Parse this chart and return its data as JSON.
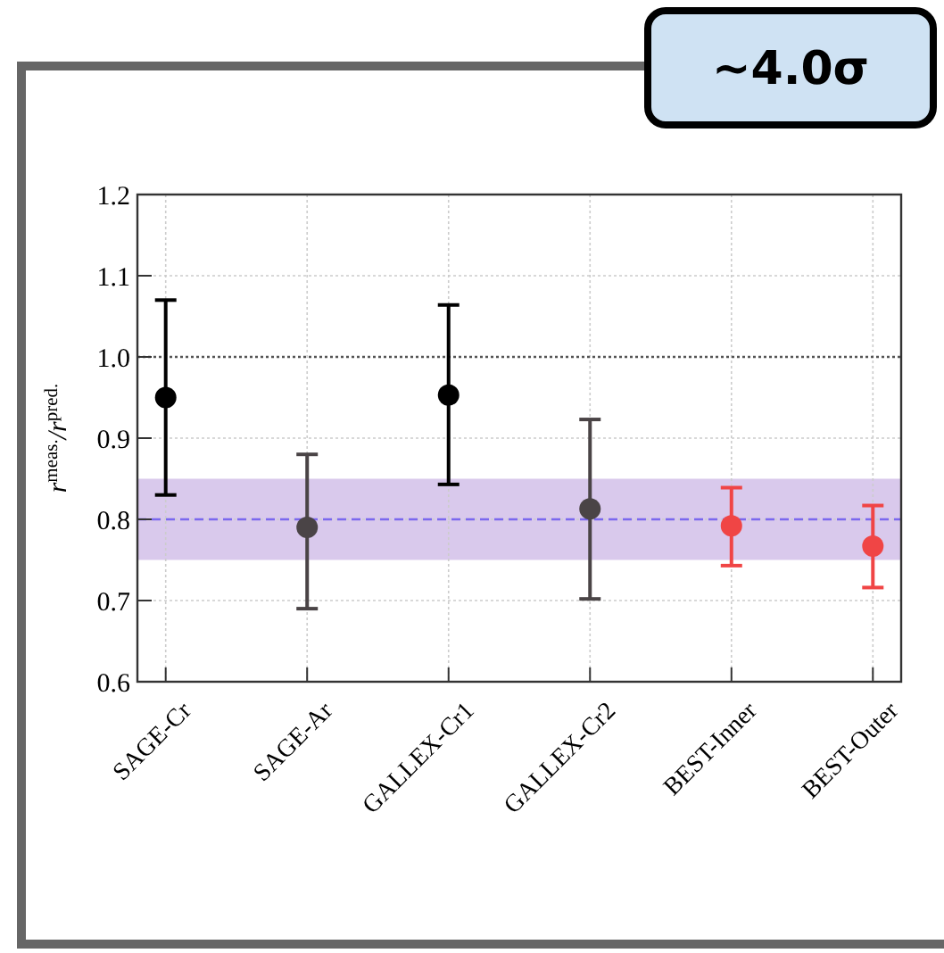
{
  "chart_data": {
    "type": "scatter",
    "ylabel": "r$^{meas.}$/r$^{pred.}$",
    "categories": [
      "SAGE-Cr",
      "SAGE-Ar",
      "GALLEX-Cr1",
      "GALLEX-Cr2",
      "BEST-Inner",
      "BEST-Outer"
    ],
    "values": [
      0.95,
      0.79,
      0.953,
      0.813,
      0.792,
      0.767
    ],
    "errors": [
      [
        0.83,
        1.07
      ],
      [
        0.69,
        0.88
      ],
      [
        0.843,
        1.064
      ],
      [
        0.702,
        0.923
      ],
      [
        0.743,
        0.839
      ],
      [
        0.716,
        0.817
      ]
    ],
    "colors": [
      "#000000",
      "#4a4446",
      "#000000",
      "#4a4446",
      "#f04545",
      "#f04545"
    ],
    "ylim": [
      0.6,
      1.2
    ],
    "yticks": [
      0.6,
      0.7,
      0.8,
      0.9,
      {
        "value": 1.0,
        "label": "1.0"
      },
      1.1,
      1.2
    ],
    "grid": true,
    "marker": "circle",
    "ref_lines": [
      {
        "axis": "y",
        "value": 1.0,
        "color": "#555555",
        "line_style": "dotted"
      },
      {
        "axis": "y",
        "value": 0.8,
        "color": "#7b68ee",
        "line_style": "dashed"
      }
    ],
    "bands": [
      {
        "axis": "y",
        "from": 0.75,
        "to": 0.85,
        "color": "#d9c9ec"
      }
    ],
    "annotations": [
      "~4.0σ"
    ]
  }
}
